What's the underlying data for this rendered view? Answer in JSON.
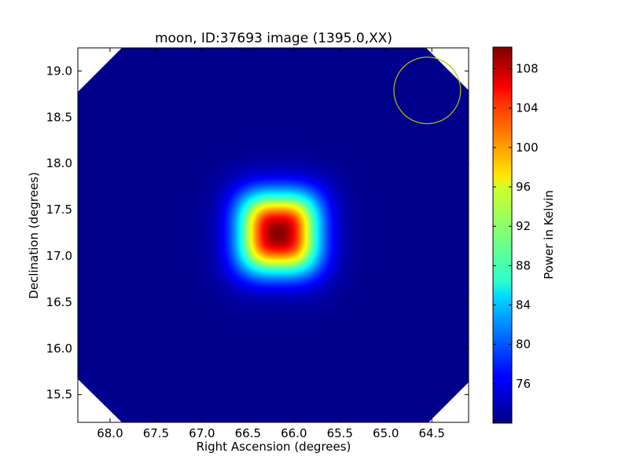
{
  "chart_data": {
    "type": "heatmap",
    "title": "moon, ID:37693 image (1395.0,XX)",
    "xlabel": "Right Ascension (degrees)",
    "ylabel": "Declination (degrees)",
    "colorbar_label": "Power in Kelvin",
    "colormap": "jet",
    "xlim": [
      68.35,
      64.1
    ],
    "ylim": [
      15.2,
      19.25
    ],
    "x_ticks": [
      "68.0",
      "67.5",
      "67.0",
      "66.5",
      "66.0",
      "65.5",
      "65.0",
      "64.5"
    ],
    "y_ticks": [
      "15.5",
      "16.0",
      "16.5",
      "17.0",
      "17.5",
      "18.0",
      "18.5",
      "19.0"
    ],
    "colorbar_ticks": [
      "76",
      "80",
      "84",
      "88",
      "92",
      "96",
      "100",
      "104",
      "108"
    ],
    "color_range": [
      72.0,
      110.2
    ],
    "source": {
      "ra": 66.17,
      "dec": 17.25,
      "peak": 110.0,
      "background": 72.5,
      "width_deg": 0.42
    },
    "beam_circle": {
      "ra": 64.55,
      "dec": 18.79,
      "radius_deg": 0.36,
      "color": "#bfbf00"
    },
    "blank_corners_color": "#ffffff"
  }
}
